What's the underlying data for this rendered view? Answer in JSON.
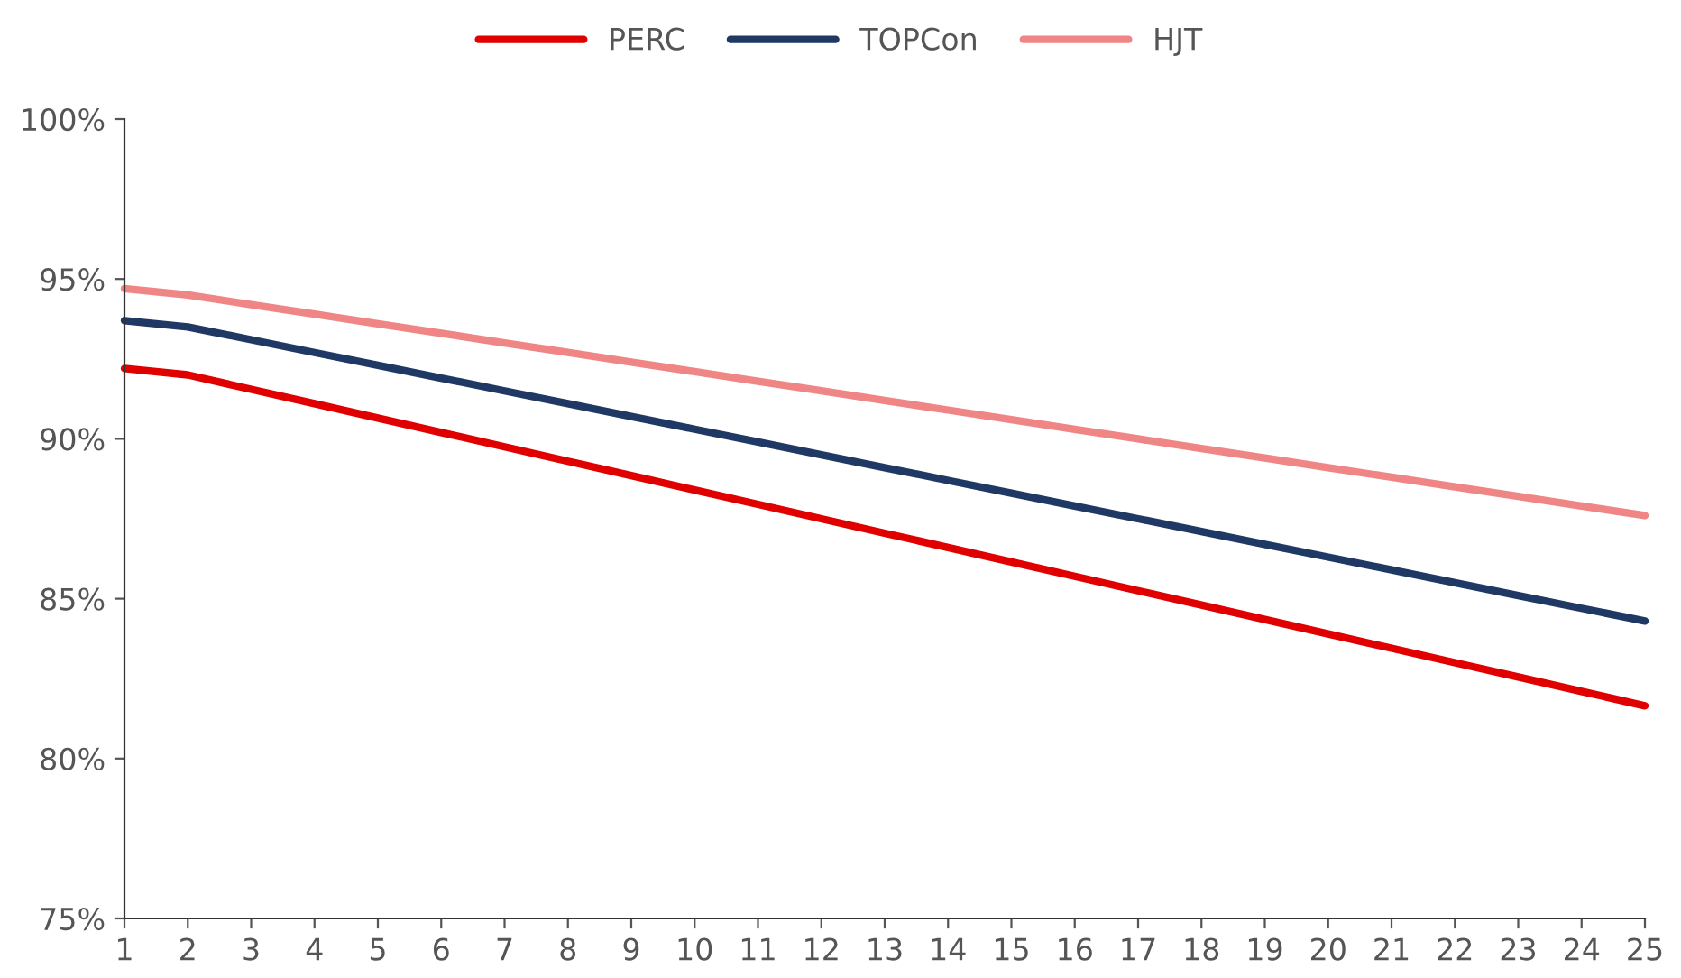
{
  "chart_data": {
    "type": "line",
    "categories": [
      "1",
      "2",
      "3",
      "4",
      "5",
      "6",
      "7",
      "8",
      "9",
      "10",
      "11",
      "12",
      "13",
      "14",
      "15",
      "16",
      "17",
      "18",
      "19",
      "20",
      "21",
      "22",
      "23",
      "24",
      "25"
    ],
    "series": [
      {
        "name": "PERC",
        "color": "#e00000",
        "values": [
          92.2,
          92.0,
          91.55,
          91.1,
          90.65,
          90.2,
          89.75,
          89.3,
          88.85,
          88.4,
          87.95,
          87.5,
          87.05,
          86.6,
          86.15,
          85.7,
          85.25,
          84.8,
          84.35,
          83.9,
          83.45,
          83.0,
          82.55,
          82.1,
          81.65
        ]
      },
      {
        "name": "TOPCon",
        "color": "#1f3864",
        "values": [
          93.7,
          93.5,
          93.1,
          92.7,
          92.3,
          91.9,
          91.5,
          91.1,
          90.7,
          90.3,
          89.9,
          89.5,
          89.1,
          88.7,
          88.3,
          87.9,
          87.5,
          87.1,
          86.7,
          86.3,
          85.9,
          85.5,
          85.1,
          84.7,
          84.3
        ]
      },
      {
        "name": "HJT",
        "color": "#f08586",
        "values": [
          94.7,
          94.5,
          94.2,
          93.9,
          93.6,
          93.3,
          93.0,
          92.7,
          92.4,
          92.1,
          91.8,
          91.5,
          91.2,
          90.9,
          90.6,
          90.3,
          90.0,
          89.7,
          89.4,
          89.1,
          88.8,
          88.5,
          88.2,
          87.9,
          87.6
        ]
      }
    ],
    "ylim": [
      75,
      100
    ],
    "yticks": [
      {
        "value": 75,
        "label": "75%"
      },
      {
        "value": 80,
        "label": "80%"
      },
      {
        "value": 85,
        "label": "85%"
      },
      {
        "value": 90,
        "label": "90%"
      },
      {
        "value": 95,
        "label": "95%"
      },
      {
        "value": 100,
        "label": "100%"
      }
    ],
    "grid": false,
    "legend": "top",
    "marker": "none",
    "line_style": "solid"
  }
}
